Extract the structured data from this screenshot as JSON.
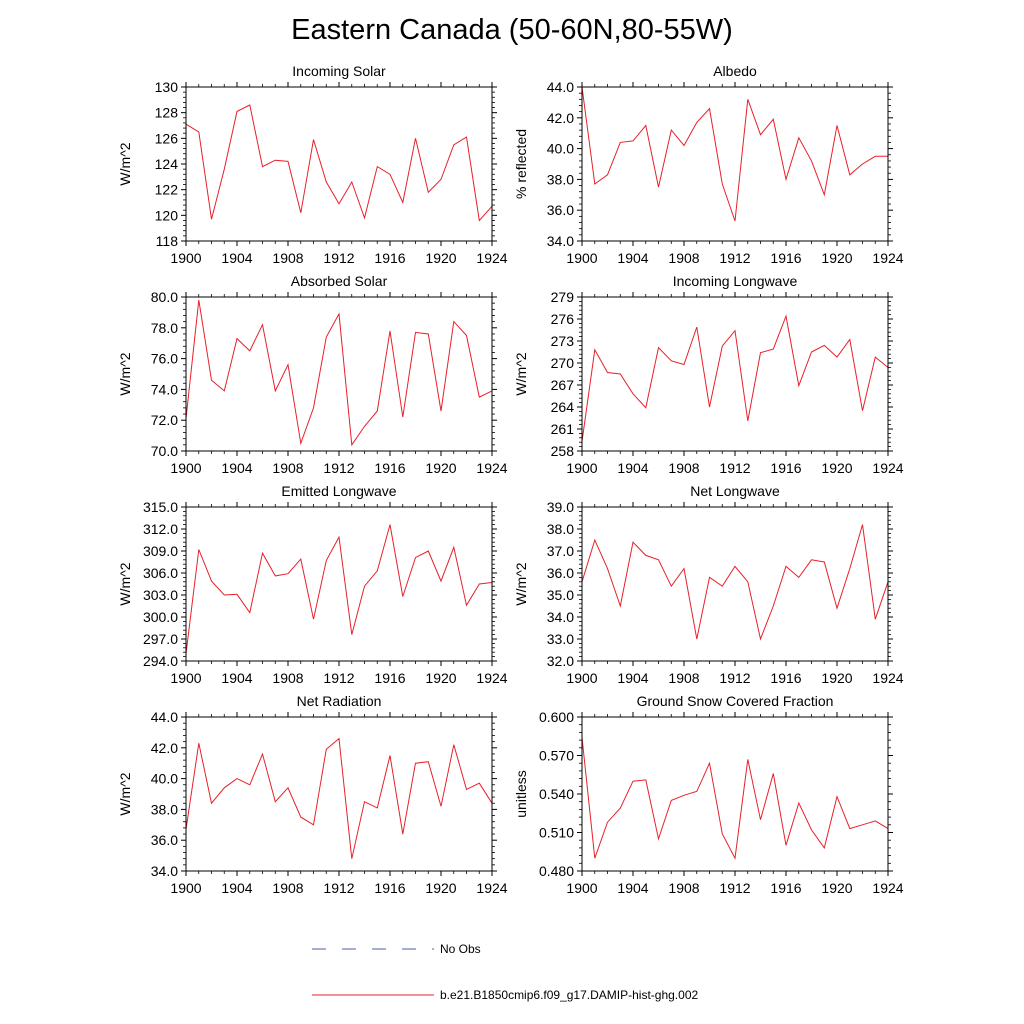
{
  "title": "Eastern Canada (50-60N,80-55W)",
  "legend": {
    "entries": [
      {
        "label": "No Obs",
        "style": "dashed",
        "color": "#4a5fa8"
      },
      {
        "label": "b.e21.B1850cmip6.f09_g17.DAMIP-hist-ghg.002",
        "style": "solid",
        "color": "#e8202a"
      }
    ]
  },
  "chart_data": [
    {
      "type": "line",
      "title": "Incoming Solar",
      "ylabel": "W/m^2",
      "xlim": [
        1900,
        1924
      ],
      "ylim": [
        118,
        130
      ],
      "yticks": [
        "118",
        "120",
        "122",
        "124",
        "126",
        "128",
        "130"
      ],
      "xticks": [
        "1900",
        "1904",
        "1908",
        "1912",
        "1916",
        "1920",
        "1924"
      ],
      "series": [
        {
          "color": "#e8202a",
          "x": [
            1900,
            1901,
            1902,
            1903,
            1904,
            1905,
            1906,
            1907,
            1908,
            1909,
            1910,
            1911,
            1912,
            1913,
            1914,
            1915,
            1916,
            1917,
            1918,
            1919,
            1920,
            1921,
            1922,
            1923,
            1924
          ],
          "values": [
            127.1,
            126.5,
            119.7,
            123.6,
            128.1,
            128.6,
            123.8,
            124.3,
            124.2,
            120.2,
            125.9,
            122.6,
            120.9,
            122.6,
            119.8,
            123.8,
            123.2,
            121.0,
            126.0,
            121.8,
            122.8,
            125.5,
            126.1,
            119.6,
            120.7
          ]
        }
      ]
    },
    {
      "type": "line",
      "title": "Albedo",
      "ylabel": "% reflected",
      "xlim": [
        1900,
        1924
      ],
      "ylim": [
        34.0,
        44.0
      ],
      "yticks": [
        "34.0",
        "36.0",
        "38.0",
        "40.0",
        "42.0",
        "44.0"
      ],
      "xticks": [
        "1900",
        "1904",
        "1908",
        "1912",
        "1916",
        "1920",
        "1924"
      ],
      "series": [
        {
          "color": "#e8202a",
          "x": [
            1900,
            1901,
            1902,
            1903,
            1904,
            1905,
            1906,
            1907,
            1908,
            1909,
            1910,
            1911,
            1912,
            1913,
            1914,
            1915,
            1916,
            1917,
            1918,
            1919,
            1920,
            1921,
            1922,
            1923,
            1924
          ],
          "values": [
            44.0,
            37.7,
            38.3,
            40.4,
            40.5,
            41.5,
            37.5,
            41.2,
            40.2,
            41.7,
            42.6,
            37.7,
            35.3,
            43.2,
            40.9,
            41.9,
            38.0,
            40.7,
            39.2,
            37.0,
            41.5,
            38.3,
            39.0,
            39.5,
            39.5
          ]
        }
      ]
    },
    {
      "type": "line",
      "title": "Absorbed Solar",
      "ylabel": "W/m^2",
      "xlim": [
        1900,
        1924
      ],
      "ylim": [
        70.0,
        80.0
      ],
      "yticks": [
        "70.0",
        "72.0",
        "74.0",
        "76.0",
        "78.0",
        "80.0"
      ],
      "xticks": [
        "1900",
        "1904",
        "1908",
        "1912",
        "1916",
        "1920",
        "1924"
      ],
      "series": [
        {
          "color": "#e8202a",
          "x": [
            1900,
            1901,
            1902,
            1903,
            1904,
            1905,
            1906,
            1907,
            1908,
            1909,
            1910,
            1911,
            1912,
            1913,
            1914,
            1915,
            1916,
            1917,
            1918,
            1919,
            1920,
            1921,
            1922,
            1923,
            1924
          ],
          "values": [
            72.1,
            79.8,
            74.6,
            73.9,
            77.3,
            76.5,
            78.2,
            73.9,
            75.6,
            70.5,
            72.8,
            77.4,
            78.9,
            70.4,
            71.6,
            72.6,
            77.8,
            72.2,
            77.7,
            77.6,
            72.6,
            78.4,
            77.5,
            73.5,
            73.9
          ]
        }
      ]
    },
    {
      "type": "line",
      "title": "Incoming Longwave",
      "ylabel": "W/m^2",
      "xlim": [
        1900,
        1924
      ],
      "ylim": [
        258,
        279
      ],
      "yticks": [
        "258",
        "261",
        "264",
        "267",
        "270",
        "273",
        "276",
        "279"
      ],
      "xticks": [
        "1900",
        "1904",
        "1908",
        "1912",
        "1916",
        "1920",
        "1924"
      ],
      "series": [
        {
          "color": "#e8202a",
          "x": [
            1900,
            1901,
            1902,
            1903,
            1904,
            1905,
            1906,
            1907,
            1908,
            1909,
            1910,
            1911,
            1912,
            1913,
            1914,
            1915,
            1916,
            1917,
            1918,
            1919,
            1920,
            1921,
            1922,
            1923,
            1924
          ],
          "values": [
            259.3,
            271.8,
            268.7,
            268.5,
            265.8,
            263.9,
            272.1,
            270.3,
            269.8,
            274.9,
            264.0,
            272.3,
            274.4,
            262.1,
            271.4,
            271.9,
            276.4,
            266.9,
            271.5,
            272.4,
            270.8,
            273.2,
            263.5,
            270.8,
            269.4
          ]
        }
      ]
    },
    {
      "type": "line",
      "title": "Emitted Longwave",
      "ylabel": "W/m^2",
      "xlim": [
        1900,
        1924
      ],
      "ylim": [
        294.0,
        315.0
      ],
      "yticks": [
        "294.0",
        "297.0",
        "300.0",
        "303.0",
        "306.0",
        "309.0",
        "312.0",
        "315.0"
      ],
      "xticks": [
        "1900",
        "1904",
        "1908",
        "1912",
        "1916",
        "1920",
        "1924"
      ],
      "series": [
        {
          "color": "#e8202a",
          "x": [
            1900,
            1901,
            1902,
            1903,
            1904,
            1905,
            1906,
            1907,
            1908,
            1909,
            1910,
            1911,
            1912,
            1913,
            1914,
            1915,
            1916,
            1917,
            1918,
            1919,
            1920,
            1921,
            1922,
            1923,
            1924
          ],
          "values": [
            295.0,
            309.2,
            304.9,
            303.0,
            303.1,
            300.6,
            308.7,
            305.6,
            305.9,
            307.9,
            299.7,
            307.7,
            310.9,
            297.6,
            304.2,
            306.3,
            312.6,
            302.8,
            308.1,
            309.0,
            304.9,
            309.5,
            301.6,
            304.5,
            304.7
          ]
        }
      ]
    },
    {
      "type": "line",
      "title": "Net Longwave",
      "ylabel": "W/m^2",
      "xlim": [
        1900,
        1924
      ],
      "ylim": [
        32.0,
        39.0
      ],
      "yticks": [
        "32.0",
        "33.0",
        "34.0",
        "35.0",
        "36.0",
        "37.0",
        "38.0",
        "39.0"
      ],
      "xticks": [
        "1900",
        "1904",
        "1908",
        "1912",
        "1916",
        "1920",
        "1924"
      ],
      "series": [
        {
          "color": "#e8202a",
          "x": [
            1900,
            1901,
            1902,
            1903,
            1904,
            1905,
            1906,
            1907,
            1908,
            1909,
            1910,
            1911,
            1912,
            1913,
            1914,
            1915,
            1916,
            1917,
            1918,
            1919,
            1920,
            1921,
            1922,
            1923,
            1924
          ],
          "values": [
            35.6,
            37.5,
            36.2,
            34.5,
            37.4,
            36.8,
            36.6,
            35.4,
            36.2,
            33.0,
            35.8,
            35.4,
            36.3,
            35.6,
            33.0,
            34.5,
            36.3,
            35.8,
            36.6,
            36.5,
            34.4,
            36.2,
            38.2,
            33.9,
            35.6
          ]
        }
      ]
    },
    {
      "type": "line",
      "title": "Net Radiation",
      "ylabel": "W/m^2",
      "xlim": [
        1900,
        1924
      ],
      "ylim": [
        34.0,
        44.0
      ],
      "yticks": [
        "34.0",
        "36.0",
        "38.0",
        "40.0",
        "42.0",
        "44.0"
      ],
      "xticks": [
        "1900",
        "1904",
        "1908",
        "1912",
        "1916",
        "1920",
        "1924"
      ],
      "series": [
        {
          "color": "#e8202a",
          "x": [
            1900,
            1901,
            1902,
            1903,
            1904,
            1905,
            1906,
            1907,
            1908,
            1909,
            1910,
            1911,
            1912,
            1913,
            1914,
            1915,
            1916,
            1917,
            1918,
            1919,
            1920,
            1921,
            1922,
            1923,
            1924
          ],
          "values": [
            36.7,
            42.3,
            38.4,
            39.4,
            40.0,
            39.6,
            41.6,
            38.5,
            39.4,
            37.5,
            37.0,
            41.9,
            42.6,
            34.8,
            38.5,
            38.1,
            41.5,
            36.4,
            41.0,
            41.1,
            38.2,
            42.2,
            39.3,
            39.7,
            38.4
          ]
        }
      ]
    },
    {
      "type": "line",
      "title": "Ground Snow Covered Fraction",
      "ylabel": "unitless",
      "xlim": [
        1900,
        1924
      ],
      "ylim": [
        0.48,
        0.6
      ],
      "yticks": [
        "0.480",
        "0.510",
        "0.540",
        "0.570",
        "0.600"
      ],
      "xticks": [
        "1900",
        "1904",
        "1908",
        "1912",
        "1916",
        "1920",
        "1924"
      ],
      "series": [
        {
          "color": "#e8202a",
          "x": [
            1900,
            1901,
            1902,
            1903,
            1904,
            1905,
            1906,
            1907,
            1908,
            1909,
            1910,
            1911,
            1912,
            1913,
            1914,
            1915,
            1916,
            1917,
            1918,
            1919,
            1920,
            1921,
            1922,
            1923,
            1924
          ],
          "values": [
            0.584,
            0.49,
            0.518,
            0.529,
            0.55,
            0.551,
            0.505,
            0.535,
            0.539,
            0.542,
            0.564,
            0.509,
            0.49,
            0.567,
            0.52,
            0.556,
            0.5,
            0.533,
            0.512,
            0.498,
            0.538,
            0.513,
            0.516,
            0.519,
            0.513
          ]
        }
      ]
    }
  ]
}
